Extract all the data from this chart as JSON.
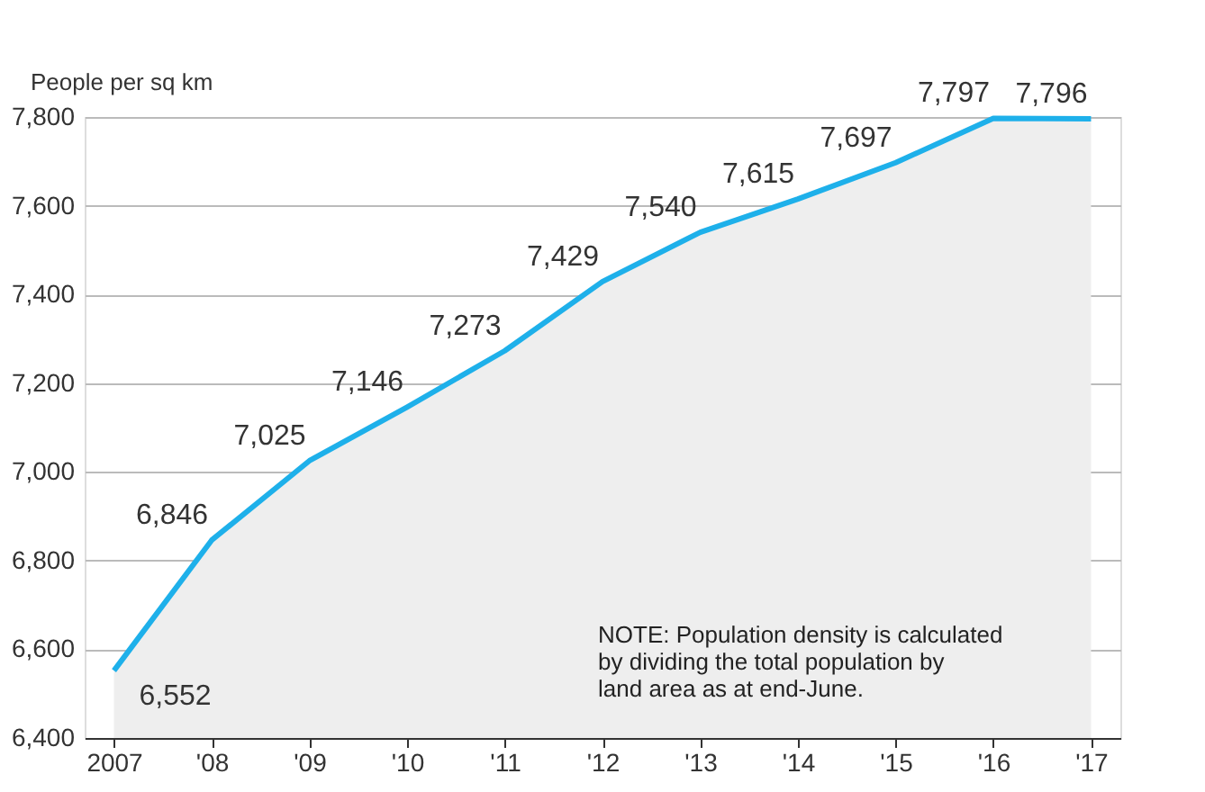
{
  "chart_data": {
    "type": "area",
    "ylabel": "People per sq km",
    "categories": [
      "2007",
      "'08",
      "'09",
      "'10",
      "'11",
      "'12",
      "'13",
      "'14",
      "'15",
      "'16",
      "'17"
    ],
    "series": [
      {
        "color": "#1eb0ea",
        "values": [
          6552,
          6846,
          7025,
          7146,
          7273,
          7429,
          7540,
          7615,
          7697,
          7797,
          7796
        ],
        "value_labels": [
          "6,552",
          "6,846",
          "7,025",
          "7,146",
          "7,273",
          "7,429",
          "7,540",
          "7,615",
          "7,697",
          "7,797",
          "7,796"
        ]
      }
    ],
    "ylim": [
      6400,
      7800
    ],
    "yticks": [
      {
        "value": 6400,
        "label": "6,400"
      },
      {
        "value": 6600,
        "label": "6,600"
      },
      {
        "value": 6800,
        "label": "6,800"
      },
      {
        "value": 7000,
        "label": "7,000"
      },
      {
        "value": 7200,
        "label": "7,200"
      },
      {
        "value": 7400,
        "label": "7,400"
      },
      {
        "value": 7600,
        "label": "7,600"
      },
      {
        "value": 7800,
        "label": "7,800"
      }
    ],
    "grid": "y",
    "annotations": [
      "NOTE: Population density is calculated\nby dividing the total population by\nland area as at end-June."
    ]
  }
}
